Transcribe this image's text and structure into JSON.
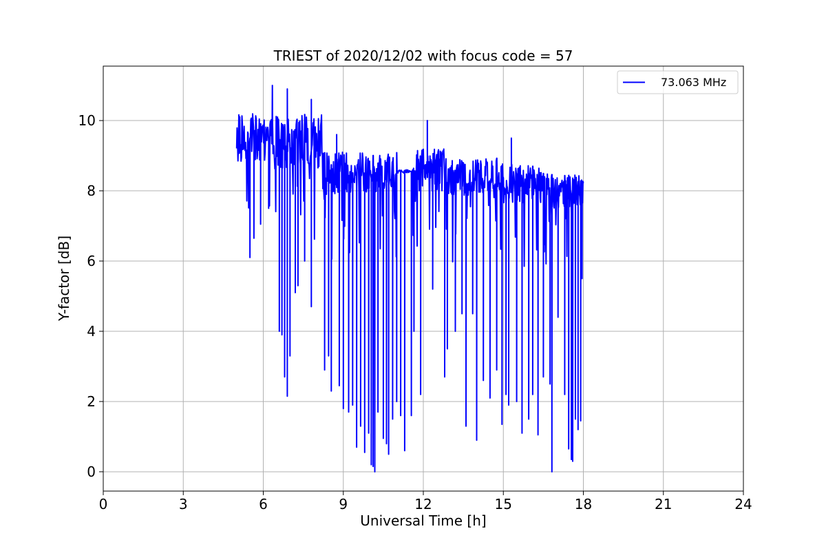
{
  "chart_data": {
    "type": "line",
    "title": "TRIEST of 2020/12/02 with focus code = 57",
    "xlabel": "Universal Time [h]",
    "ylabel": "Y-factor [dB]",
    "xlim": [
      0,
      24
    ],
    "ylim": [
      -0.55,
      11.55
    ],
    "xticks": [
      0,
      3,
      6,
      9,
      12,
      15,
      18,
      21,
      24
    ],
    "yticks": [
      0,
      2,
      4,
      6,
      8,
      10
    ],
    "grid": true,
    "legend_position": "top-right",
    "series": [
      {
        "name": "73.063 MHz",
        "color": "#0000ff",
        "x_start": 5.0,
        "x_end": 18.0,
        "points_per_hour": 60,
        "segments": [
          {
            "from": 5.0,
            "to": 6.5,
            "mean": 9.5,
            "spread": 0.7
          },
          {
            "from": 6.5,
            "to": 8.2,
            "mean": 9.4,
            "spread": 0.8
          },
          {
            "from": 8.2,
            "to": 11.0,
            "mean": 8.5,
            "spread": 0.6
          },
          {
            "from": 11.0,
            "to": 11.6,
            "mean": 8.55,
            "spread": 0.05
          },
          {
            "from": 11.6,
            "to": 13.0,
            "mean": 8.6,
            "spread": 0.6
          },
          {
            "from": 13.0,
            "to": 15.0,
            "mean": 8.4,
            "spread": 0.55
          },
          {
            "from": 15.0,
            "to": 16.5,
            "mean": 8.2,
            "spread": 0.55
          },
          {
            "from": 16.5,
            "to": 18.0,
            "mean": 8.0,
            "spread": 0.5
          }
        ],
        "spikes_up": [
          {
            "x": 6.34,
            "y": 11.0
          },
          {
            "x": 6.9,
            "y": 10.9
          },
          {
            "x": 7.8,
            "y": 10.6
          },
          {
            "x": 12.15,
            "y": 10.0
          },
          {
            "x": 8.75,
            "y": 9.6
          },
          {
            "x": 15.3,
            "y": 9.5
          }
        ],
        "dips": [
          {
            "x": 5.5,
            "y": 6.1
          },
          {
            "x": 5.65,
            "y": 6.65
          },
          {
            "x": 5.9,
            "y": 7.05
          },
          {
            "x": 6.2,
            "y": 7.5
          },
          {
            "x": 6.6,
            "y": 4.0
          },
          {
            "x": 6.7,
            "y": 3.9
          },
          {
            "x": 6.8,
            "y": 2.7
          },
          {
            "x": 6.9,
            "y": 2.15
          },
          {
            "x": 7.0,
            "y": 3.3
          },
          {
            "x": 7.2,
            "y": 5.1
          },
          {
            "x": 7.3,
            "y": 5.3
          },
          {
            "x": 7.55,
            "y": 6.0
          },
          {
            "x": 7.8,
            "y": 4.7
          },
          {
            "x": 8.3,
            "y": 2.9
          },
          {
            "x": 8.45,
            "y": 3.3
          },
          {
            "x": 8.55,
            "y": 2.3
          },
          {
            "x": 8.85,
            "y": 2.45
          },
          {
            "x": 9.0,
            "y": 1.8
          },
          {
            "x": 9.2,
            "y": 1.7
          },
          {
            "x": 9.35,
            "y": 1.9
          },
          {
            "x": 9.5,
            "y": 0.7
          },
          {
            "x": 9.65,
            "y": 1.3
          },
          {
            "x": 9.8,
            "y": 0.55
          },
          {
            "x": 9.95,
            "y": 1.1
          },
          {
            "x": 10.05,
            "y": 0.2
          },
          {
            "x": 10.12,
            "y": 0.15
          },
          {
            "x": 10.18,
            "y": 0.0
          },
          {
            "x": 10.3,
            "y": 1.7
          },
          {
            "x": 10.5,
            "y": 0.95
          },
          {
            "x": 10.62,
            "y": 0.8
          },
          {
            "x": 10.7,
            "y": 0.5
          },
          {
            "x": 10.85,
            "y": 1.5
          },
          {
            "x": 11.0,
            "y": 2.0
          },
          {
            "x": 11.15,
            "y": 1.6
          },
          {
            "x": 11.3,
            "y": 0.6
          },
          {
            "x": 11.55,
            "y": 1.6
          },
          {
            "x": 11.65,
            "y": 4.0
          },
          {
            "x": 11.9,
            "y": 2.2
          },
          {
            "x": 12.35,
            "y": 5.2
          },
          {
            "x": 12.8,
            "y": 2.7
          },
          {
            "x": 12.9,
            "y": 3.5
          },
          {
            "x": 13.2,
            "y": 4.0
          },
          {
            "x": 13.45,
            "y": 4.5
          },
          {
            "x": 13.6,
            "y": 1.3
          },
          {
            "x": 13.85,
            "y": 4.5
          },
          {
            "x": 14.0,
            "y": 0.9
          },
          {
            "x": 14.25,
            "y": 2.6
          },
          {
            "x": 14.5,
            "y": 2.1
          },
          {
            "x": 14.75,
            "y": 2.9
          },
          {
            "x": 14.95,
            "y": 1.35
          },
          {
            "x": 15.1,
            "y": 2.2
          },
          {
            "x": 15.2,
            "y": 1.9
          },
          {
            "x": 15.5,
            "y": 2.0
          },
          {
            "x": 15.7,
            "y": 1.1
          },
          {
            "x": 15.95,
            "y": 1.5
          },
          {
            "x": 16.1,
            "y": 2.2
          },
          {
            "x": 16.3,
            "y": 1.05
          },
          {
            "x": 16.5,
            "y": 2.7
          },
          {
            "x": 16.75,
            "y": 2.5
          },
          {
            "x": 16.82,
            "y": 0.0
          },
          {
            "x": 17.05,
            "y": 4.4
          },
          {
            "x": 17.3,
            "y": 2.2
          },
          {
            "x": 17.45,
            "y": 0.65
          },
          {
            "x": 17.55,
            "y": 0.35
          },
          {
            "x": 17.6,
            "y": 0.3
          },
          {
            "x": 17.7,
            "y": 1.5
          },
          {
            "x": 17.8,
            "y": 1.2
          },
          {
            "x": 17.9,
            "y": 1.45
          },
          {
            "x": 17.95,
            "y": 5.5
          }
        ]
      }
    ]
  }
}
